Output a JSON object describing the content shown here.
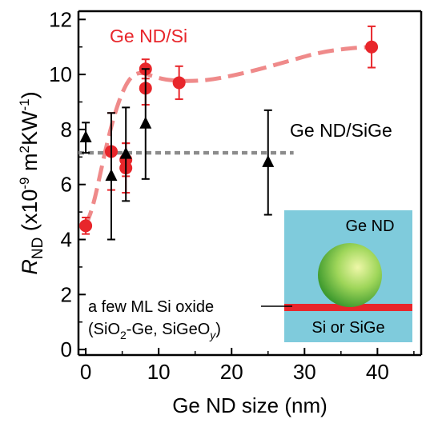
{
  "chart_data": {
    "type": "scatter",
    "xlabel": "Ge ND size (nm)",
    "ylabel": {
      "main": "R",
      "sub": "ND",
      "units_prefix": " (x10",
      "units_exp": "-9",
      "units_mid": " m",
      "units_exp2": "2",
      "units_mid2": "KW",
      "units_exp3": "-1",
      "units_suffix": ")"
    },
    "xlim": [
      -1,
      46
    ],
    "ylim": [
      -0.2,
      12.3
    ],
    "xticks": [
      0,
      10,
      20,
      30,
      40
    ],
    "yticks": [
      0,
      2,
      4,
      6,
      8,
      10,
      12
    ],
    "grid": false,
    "series": [
      {
        "name": "Ge ND/Si",
        "color": "#e8262b",
        "marker": "circle",
        "points": [
          {
            "x": 0,
            "y": 4.5,
            "err": 0.3
          },
          {
            "x": 3.5,
            "y": 7.2,
            "err": 1.4
          },
          {
            "x": 5.5,
            "y": 6.6,
            "err": 0.9
          },
          {
            "x": 5.5,
            "y": 6.9,
            "err": 0.6
          },
          {
            "x": 8.2,
            "y": 10.2,
            "err": 0.35
          },
          {
            "x": 8.2,
            "y": 9.5,
            "err": 0.6
          },
          {
            "x": 12.8,
            "y": 9.7,
            "err": 0.6
          },
          {
            "x": 39.2,
            "y": 11.0,
            "err": 0.75
          }
        ]
      },
      {
        "name": "Ge ND/SiGe",
        "color": "#000000",
        "marker": "triangle",
        "points": [
          {
            "x": 0,
            "y": 7.7,
            "err": 0.55
          },
          {
            "x": 3.5,
            "y": 6.3,
            "err": 2.3
          },
          {
            "x": 5.5,
            "y": 7.1,
            "err": 1.7
          },
          {
            "x": 8.2,
            "y": 8.2,
            "err": 2.0
          },
          {
            "x": 25,
            "y": 6.8,
            "err": 1.9
          }
        ]
      }
    ],
    "fits": [
      {
        "color": "#ef8a8a",
        "style": "dashed",
        "points": [
          [
            0,
            4.5
          ],
          [
            1,
            5.2
          ],
          [
            2,
            6.4
          ],
          [
            3,
            7.6
          ],
          [
            4,
            8.6
          ],
          [
            5,
            9.35
          ],
          [
            6,
            9.85
          ],
          [
            7,
            10.05
          ],
          [
            8,
            10.05
          ],
          [
            9,
            9.95
          ],
          [
            11,
            9.8
          ],
          [
            14,
            9.75
          ],
          [
            17,
            9.8
          ],
          [
            20,
            9.95
          ],
          [
            24,
            10.2
          ],
          [
            28,
            10.5
          ],
          [
            32,
            10.8
          ],
          [
            36,
            10.95
          ],
          [
            39,
            11.0
          ]
        ]
      },
      {
        "color": "#8c8c8c",
        "style": "dotted",
        "points": [
          [
            -1,
            7.15
          ],
          [
            28.5,
            7.15
          ]
        ]
      }
    ],
    "annotations": {
      "series1_label": "Ge ND/Si",
      "series2_label": "Ge ND/SiGe",
      "inset_nd_label": "Ge ND",
      "inset_substrate_label": "Si or SiGe",
      "oxide_label_line1": "a few ML Si oxide",
      "oxide_line2_prefix": "(SiO",
      "oxide_line2_sub1": "2",
      "oxide_line2_mid": "-Ge, SiGeO",
      "oxide_line2_sub2": "y",
      "oxide_line2_suffix": ")"
    }
  }
}
